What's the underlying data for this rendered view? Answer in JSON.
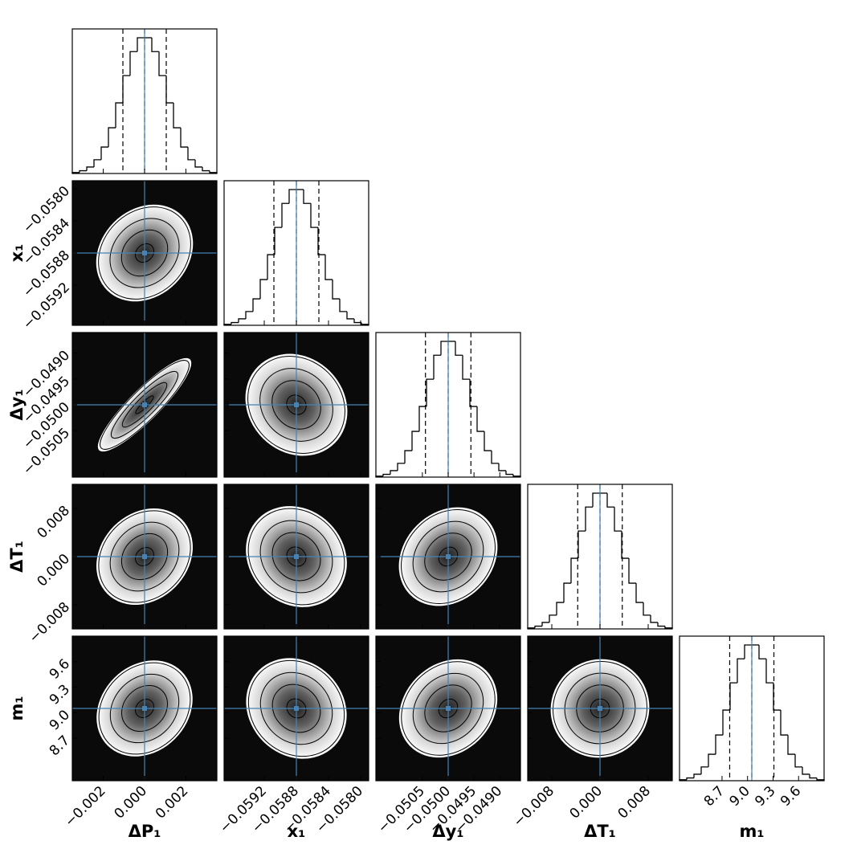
{
  "chart_data": {
    "type": "corner",
    "truth_color": "#4682b4",
    "hist_ylim": [
      0,
      1050
    ],
    "parameters": [
      {
        "label": "ΔP₁",
        "lim": [
          -0.0035,
          0.0035
        ],
        "ticks": [
          {
            "value": -0.002,
            "label": "−0.002"
          },
          {
            "value": 0,
            "label": "0.000"
          },
          0.002
        ],
        "truth": 0,
        "quantiles": [
          -0.00105,
          0,
          0.00105
        ],
        "bins": [
          -0.0035,
          -0.00315,
          -0.0028,
          -0.00245,
          -0.0021,
          -0.00175,
          -0.0014,
          -0.00105,
          -0.0007,
          -0.00035,
          0,
          0.00035,
          0.0007,
          0.00105,
          0.0014,
          0.00175,
          0.0021,
          0.00245,
          0.0028,
          0.00315,
          0.0035
        ],
        "counts": [
          7,
          20,
          47,
          100,
          192,
          332,
          513,
          711,
          885,
          986,
          986,
          885,
          711,
          513,
          332,
          192,
          100,
          47,
          20,
          7
        ]
      },
      {
        "label": "x₁",
        "lim": [
          -0.0597,
          -0.0579
        ],
        "ticks": [
          {
            "value": -0.0592,
            "label": "−0.0592"
          },
          {
            "value": -0.0588,
            "label": "−0.0588"
          },
          {
            "value": -0.0584,
            "label": "−0.0584"
          },
          {
            "value": -0.058,
            "label": "−0.0580"
          }
        ],
        "truth": -0.0588,
        "quantiles": [
          -0.05908,
          -0.0588,
          -0.05852
        ],
        "bins": [
          -0.0597,
          -0.05961,
          -0.05952,
          -0.05943,
          -0.05934,
          -0.05925,
          -0.05916,
          -0.05907,
          -0.05898,
          -0.05889,
          -0.0588,
          -0.05871,
          -0.05862,
          -0.05853,
          -0.05844,
          -0.05835,
          -0.05826,
          -0.05817,
          -0.05808,
          -0.05799,
          -0.0579
        ],
        "counts": [
          7,
          20,
          47,
          100,
          192,
          332,
          513,
          711,
          885,
          986,
          986,
          885,
          711,
          513,
          332,
          192,
          100,
          47,
          20,
          7
        ]
      },
      {
        "label": "Δy₁",
        "lim": [
          -0.0514,
          -0.0486
        ],
        "ticks": [
          {
            "value": -0.0505,
            "label": "−0.0505"
          },
          {
            "value": -0.05,
            "label": "−0.0500"
          },
          {
            "value": -0.0495,
            "label": "−0.0495"
          },
          {
            "value": -0.049,
            "label": "−0.0490"
          }
        ],
        "truth": -0.05,
        "quantiles": [
          -0.05044,
          -0.05,
          -0.04956
        ],
        "bins": [
          -0.0514,
          -0.05126,
          -0.05112,
          -0.05098,
          -0.05084,
          -0.0507,
          -0.05056,
          -0.05042,
          -0.05028,
          -0.05014,
          -0.05,
          -0.04986,
          -0.04972,
          -0.04958,
          -0.04944,
          -0.0493,
          -0.04916,
          -0.04902,
          -0.04888,
          -0.04874,
          -0.0486
        ],
        "counts": [
          7,
          20,
          47,
          100,
          192,
          332,
          513,
          711,
          885,
          986,
          986,
          885,
          711,
          513,
          332,
          192,
          100,
          47,
          20,
          7
        ]
      },
      {
        "label": "ΔT₁",
        "lim": [
          -0.012,
          0.012
        ],
        "ticks": [
          {
            "value": -0.008,
            "label": "−0.008"
          },
          {
            "value": 0,
            "label": "0.000"
          },
          0.008
        ],
        "truth": 0,
        "quantiles": [
          -0.0037,
          0,
          0.0037
        ],
        "bins": [
          -0.012,
          -0.0108,
          -0.0096,
          -0.0084,
          -0.0072,
          -0.006,
          -0.0048,
          -0.0036,
          -0.0024,
          -0.0012,
          0,
          0.0012,
          0.0024,
          0.0036,
          0.0048,
          0.006,
          0.0072,
          0.0084,
          0.0096,
          0.0108,
          0.012
        ],
        "counts": [
          7,
          20,
          47,
          100,
          192,
          332,
          513,
          711,
          885,
          986,
          986,
          885,
          711,
          513,
          332,
          192,
          100,
          47,
          20,
          7
        ]
      },
      {
        "label": "m₁",
        "lim": [
          8.2,
          9.9
        ],
        "ticks": [
          8.7,
          {
            "value": 9,
            "label": "9.0"
          },
          9.3,
          9.6
        ],
        "truth": 9.05,
        "quantiles": [
          8.79,
          9.05,
          9.31
        ],
        "bins": [
          8.2,
          8.285,
          8.37,
          8.455,
          8.54,
          8.625,
          8.71,
          8.795,
          8.88,
          8.965,
          9.05,
          9.135,
          9.22,
          9.305,
          9.39,
          9.475,
          9.56,
          9.645,
          9.73,
          9.815,
          9.9
        ],
        "counts": [
          7,
          20,
          47,
          100,
          192,
          332,
          513,
          711,
          885,
          986,
          986,
          885,
          711,
          513,
          332,
          192,
          100,
          47,
          20,
          7
        ]
      }
    ],
    "correlations": [
      [
        0.3
      ],
      [
        0.9,
        0
      ],
      [
        0.3,
        0,
        0.3
      ],
      [
        0.3,
        0,
        0.3,
        0.15
      ]
    ]
  }
}
